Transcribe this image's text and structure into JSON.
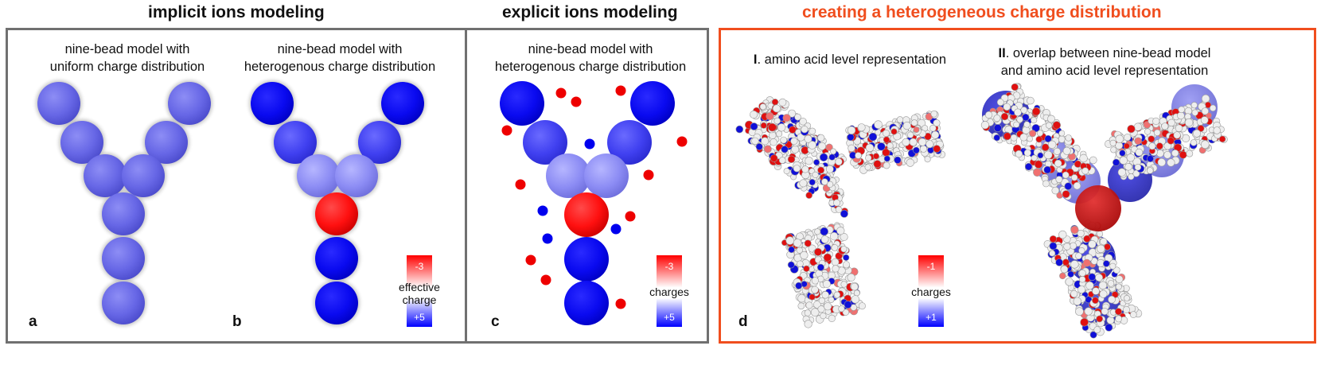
{
  "titles": {
    "implicit": "implicit ions modeling",
    "explicit": "explicit ions modeling",
    "heterogeneous": "creating a heterogeneous charge distribution"
  },
  "colors": {
    "frame_gray": "#707070",
    "frame_orange": "#f04e1e",
    "title_orange": "#f04e1e",
    "uniform_bead": "#6a6ae8",
    "negative": "#ff1010",
    "positive": "#0000ee"
  },
  "panels": {
    "a": {
      "caption_line1": "nine-bead model with",
      "caption_line2": "uniform charge distribution",
      "letter": "a"
    },
    "b": {
      "caption_line1": "nine-bead model with",
      "caption_line2": "heterogenous charge distribution",
      "letter": "b",
      "colorbar": {
        "top": "-3",
        "bottom": "+5",
        "label_line1": "effective",
        "label_line2": "charge"
      }
    },
    "c": {
      "caption_line1": "nine-bead model with",
      "caption_line2": "heterogenous charge distribution",
      "letter": "c",
      "colorbar": {
        "top": "-3",
        "bottom": "+5",
        "label": "charges"
      }
    },
    "d": {
      "part1_roman": "I",
      "part1_text": ". amino acid level representation",
      "part2_roman": "II",
      "part2_line1": ". overlap between nine-bead model",
      "part2_line2": "and amino acid level representation",
      "letter": "d",
      "colorbar": {
        "top": "-1",
        "bottom": "+1",
        "label": "charges"
      }
    }
  }
}
